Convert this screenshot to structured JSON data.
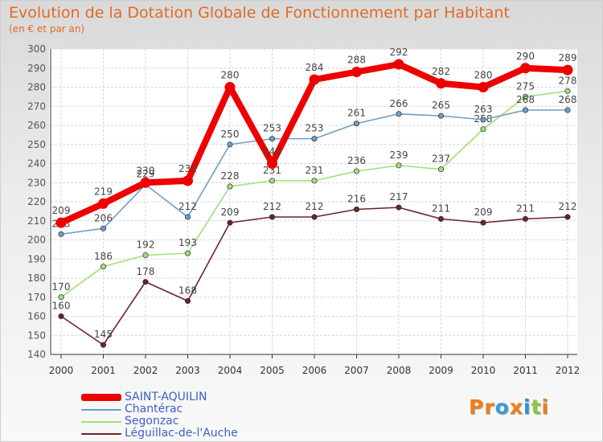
{
  "title": "Evolution de la Dotation Globale de Fonctionnement par Habitant",
  "subtitle": "(en € et par an)",
  "brand": {
    "letters": [
      "P",
      "r",
      "o",
      "x",
      "i",
      "t",
      "i"
    ],
    "colors": [
      "#f07e1d",
      "#f07e1d",
      "#3c9ad8",
      "#f07e1d",
      "#2f8fd5",
      "#8dc63f",
      "#f07e1d"
    ]
  },
  "chart_data": {
    "type": "line",
    "title": "Evolution de la Dotation Globale de Fonctionnement par Habitant",
    "subtitle": "(en € et par an)",
    "xlabel": "",
    "ylabel": "",
    "ylim": [
      140,
      300
    ],
    "yticks": [
      140,
      150,
      160,
      170,
      180,
      190,
      200,
      210,
      220,
      230,
      240,
      250,
      260,
      270,
      280,
      290,
      300
    ],
    "categories": [
      "2000",
      "2001",
      "2002",
      "2003",
      "2004",
      "2005",
      "2006",
      "2007",
      "2008",
      "2009",
      "2010",
      "2011",
      "2012"
    ],
    "series": [
      {
        "name": "Léguillac-de-l'Auche",
        "color": "#6b2429",
        "values": [
          160,
          145,
          178,
          168,
          209,
          212,
          212,
          216,
          217,
          211,
          209,
          211,
          212
        ],
        "labels": [
          "160",
          "145",
          "178",
          "168",
          "209",
          "212",
          "212",
          "216",
          "217",
          "211",
          "209",
          "211",
          "212"
        ]
      },
      {
        "name": "Segonzac",
        "color": "#9ee07a",
        "values": [
          170,
          186,
          192,
          193,
          228,
          231,
          231,
          236,
          239,
          237,
          258,
          275,
          278
        ],
        "labels": [
          "170",
          "186",
          "192",
          "193",
          "228",
          "231",
          "231",
          "236",
          "239",
          "237",
          "258",
          "275",
          "278"
        ]
      },
      {
        "name": "Chantérac",
        "color": "#6d9ec6",
        "values": [
          203,
          206,
          229,
          212,
          250,
          253,
          253,
          261,
          266,
          265,
          263,
          268,
          268
        ],
        "labels": [
          "203",
          "206",
          "229",
          "212",
          "250",
          "253",
          "253",
          "261",
          "266",
          "265",
          "263",
          "268",
          "268"
        ]
      },
      {
        "name": "SAINT-AQUILIN",
        "color": "#ee0000",
        "values": [
          209,
          219,
          230,
          231,
          280,
          240,
          284,
          288,
          292,
          282,
          280,
          290,
          289
        ],
        "labels": [
          "209",
          "219",
          "230",
          "231",
          "280",
          "240",
          "284",
          "288",
          "292",
          "282",
          "280",
          "290",
          "289"
        ]
      }
    ],
    "legend": {
      "position": "bottom-left",
      "order": [
        "SAINT-AQUILIN",
        "Chantérac",
        "Segonzac",
        "Léguillac-de-l'Auche"
      ]
    }
  }
}
